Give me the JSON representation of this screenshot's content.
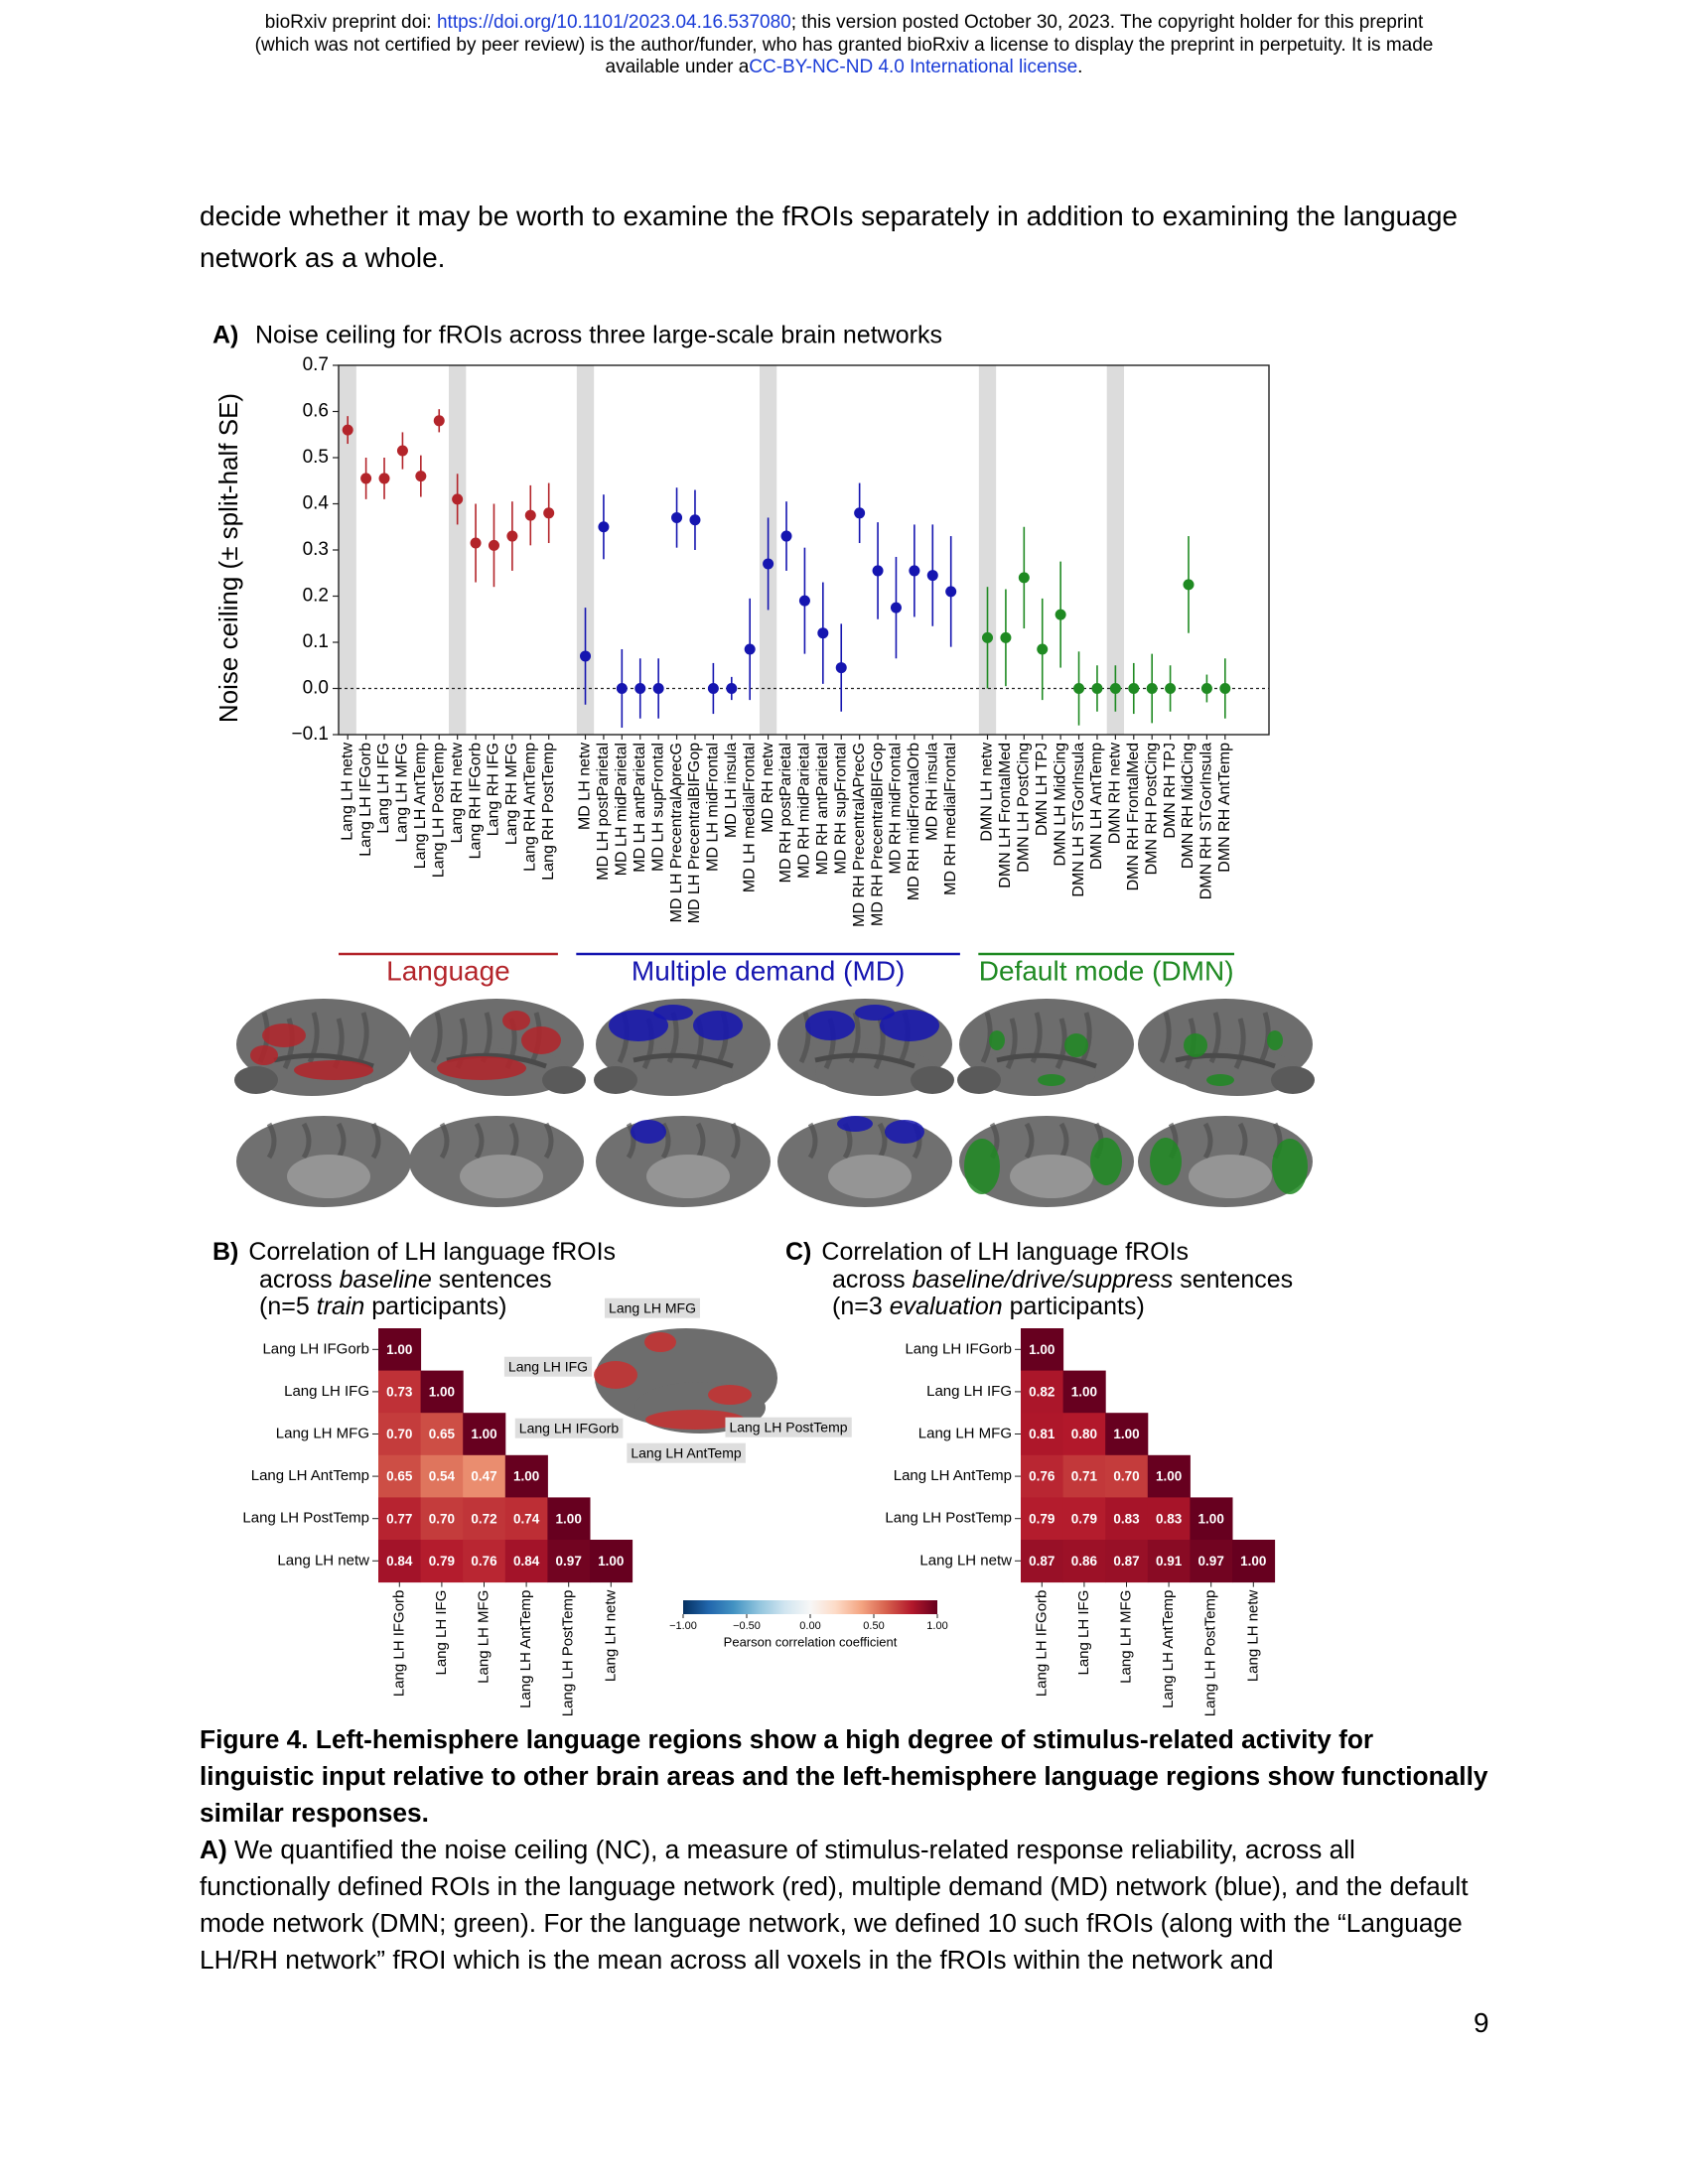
{
  "header": {
    "line1_pre": "bioRxiv preprint doi: ",
    "doi": "https://doi.org/10.1101/2023.04.16.537080",
    "line1_post": "; this version posted October 30, 2023. The copyright holder for this preprint",
    "line2": "(which was not certified by peer review) is the author/funder, who has granted bioRxiv a license to display the preprint in perpetuity. It is made",
    "line3_pre": "available under a",
    "license": "CC-BY-NC-ND 4.0 International license",
    "line3_post": "."
  },
  "body_text": "decide whether it may be worth to examine the fROIs separately in addition to examining the language network as a whole.",
  "chart_data": [
    {
      "type": "errorbar",
      "label": "A)",
      "title": "Noise ceiling for fROIs across three large-scale brain networks",
      "y_label": "Noise ceiling (± split-half SE)",
      "ylim": [
        -0.1,
        0.7
      ],
      "yticks": [
        {
          "value": -0.1,
          "label": "−0.1"
        },
        {
          "value": 0,
          "label": "0.0"
        },
        0.1,
        0.2,
        0.3,
        0.4,
        0.5,
        0.6,
        0.7
      ],
      "reference_line": 0,
      "highlight": [
        0,
        6,
        13,
        23,
        35,
        42
      ],
      "categories": [
        "Lang LH netw",
        "Lang LH IFGorb",
        "Lang LH IFG",
        "Lang LH MFG",
        "Lang LH AntTemp",
        "Lang LH PostTemp",
        "Lang RH netw",
        "Lang RH IFGorb",
        "Lang RH IFG",
        "Lang RH MFG",
        "Lang RH AntTemp",
        "Lang RH PostTemp",
        null,
        "MD LH netw",
        "MD LH postParietal",
        "MD LH midParietal",
        "MD LH antParietal",
        "MD LH supFrontal",
        "MD LH PrecentralAprecG",
        "MD LH PrecentralBIFGop",
        "MD LH midFrontal",
        "MD LH insula",
        "MD LH medialFrontal",
        "MD RH netw",
        "MD RH postParietal",
        "MD RH midParietal",
        "MD RH antParietal",
        "MD RH supFrontal",
        "MD RH PrecentralAPrecG",
        "MD RH PrecentralBIFGop",
        "MD RH midFrontal",
        "MD RH midFrontalOrb",
        "MD RH insula",
        "MD RH medialFrontal",
        null,
        "DMN LH netw",
        "DMN LH FrontalMed",
        "DMN LH PostCing",
        "DMN LH TPJ",
        "DMN LH MidCing",
        "DMN LH STGorInsula",
        "DMN LH AntTemp",
        "DMN RH netw",
        "DMN RH FrontalMed",
        "DMN RH PostCing",
        "DMN RH TPJ",
        "DMN RH MidCing",
        "DMN RH STGorInsula",
        "DMN RH AntTemp"
      ],
      "series": [
        {
          "name": "Language",
          "color": "#b3242a",
          "values": [
            0.56,
            0.455,
            0.455,
            0.515,
            0.46,
            0.58,
            0.41,
            0.315,
            0.31,
            0.33,
            0.375,
            0.38,
            null,
            null,
            null,
            null,
            null,
            null,
            null,
            null,
            null,
            null,
            null,
            null,
            null,
            null,
            null,
            null,
            null,
            null,
            null,
            null,
            null,
            null,
            null,
            null,
            null,
            null,
            null,
            null,
            null,
            null,
            null,
            null,
            null,
            null,
            null,
            null,
            null
          ],
          "errors": [
            0.03,
            0.045,
            0.045,
            0.04,
            0.045,
            0.025,
            0.055,
            0.085,
            0.09,
            0.075,
            0.065,
            0.065,
            null,
            null,
            null,
            null,
            null,
            null,
            null,
            null,
            null,
            null,
            null,
            null,
            null,
            null,
            null,
            null,
            null,
            null,
            null,
            null,
            null,
            null,
            null,
            null,
            null,
            null,
            null,
            null,
            null,
            null,
            null,
            null,
            null,
            null,
            null,
            null,
            null
          ]
        },
        {
          "name": "Multiple demand (MD)",
          "color": "#1515b0",
          "values": [
            null,
            null,
            null,
            null,
            null,
            null,
            null,
            null,
            null,
            null,
            null,
            null,
            null,
            0.07,
            0.35,
            0,
            0,
            0,
            0.37,
            0.365,
            0,
            0,
            0.085,
            0.27,
            0.33,
            0.19,
            0.12,
            0.045,
            0.38,
            0.255,
            0.175,
            0.255,
            0.245,
            0.21,
            null,
            null,
            null,
            null,
            null,
            null,
            null,
            null,
            null,
            null,
            null,
            null,
            null,
            null,
            null
          ],
          "errors": [
            null,
            null,
            null,
            null,
            null,
            null,
            null,
            null,
            null,
            null,
            null,
            null,
            null,
            0.105,
            0.07,
            0.085,
            0.065,
            0.065,
            0.065,
            0.065,
            0.055,
            0.025,
            0.11,
            0.1,
            0.075,
            0.115,
            0.11,
            0.095,
            0.065,
            0.105,
            0.11,
            0.1,
            0.11,
            0.12,
            null,
            null,
            null,
            null,
            null,
            null,
            null,
            null,
            null,
            null,
            null,
            null,
            null,
            null,
            null
          ]
        },
        {
          "name": "Default mode (DMN)",
          "color": "#1f8a22",
          "values": [
            null,
            null,
            null,
            null,
            null,
            null,
            null,
            null,
            null,
            null,
            null,
            null,
            null,
            null,
            null,
            null,
            null,
            null,
            null,
            null,
            null,
            null,
            null,
            null,
            null,
            null,
            null,
            null,
            null,
            null,
            null,
            null,
            null,
            null,
            null,
            0.11,
            0.11,
            0.24,
            0.085,
            0.16,
            0,
            0,
            0,
            0,
            0,
            0,
            0.225,
            0,
            0
          ],
          "errors": [
            null,
            null,
            null,
            null,
            null,
            null,
            null,
            null,
            null,
            null,
            null,
            null,
            null,
            null,
            null,
            null,
            null,
            null,
            null,
            null,
            null,
            null,
            null,
            null,
            null,
            null,
            null,
            null,
            null,
            null,
            null,
            null,
            null,
            null,
            null,
            0.11,
            0.105,
            0.11,
            0.11,
            0.115,
            0.08,
            0.05,
            0.05,
            0.055,
            0.075,
            0.05,
            0.105,
            0.03,
            0.065
          ]
        }
      ]
    },
    {
      "type": "heatmap",
      "label": "B)",
      "title_lines": [
        [
          "Correlation of LH language fROIs"
        ],
        [
          "across ",
          "baseline",
          " sentences"
        ],
        [
          "(n=5 ",
          "train",
          " participants)"
        ]
      ],
      "categories": [
        "Lang LH IFGorb",
        "Lang LH IFG",
        "Lang LH MFG",
        "Lang LH AntTemp",
        "Lang LH PostTemp",
        "Lang LH netw"
      ],
      "values": [
        [
          1
        ],
        [
          0.73,
          1
        ],
        [
          0.7,
          0.65,
          1
        ],
        [
          0.65,
          0.54,
          0.47,
          1
        ],
        [
          0.77,
          0.7,
          0.72,
          0.74,
          1
        ],
        [
          0.84,
          0.79,
          0.76,
          0.84,
          0.97,
          1
        ]
      ],
      "value_labels": [
        [
          "1.00"
        ],
        [
          "0.73",
          "1.00"
        ],
        [
          "0.70",
          "0.65",
          "1.00"
        ],
        [
          "0.65",
          "0.54",
          "0.47",
          "1.00"
        ],
        [
          "0.77",
          "0.70",
          "0.72",
          "0.74",
          "1.00"
        ],
        [
          "0.84",
          "0.79",
          "0.76",
          "0.84",
          "0.97",
          "1.00"
        ]
      ]
    },
    {
      "type": "heatmap",
      "label": "C)",
      "title_lines": [
        [
          "Correlation of LH language fROIs"
        ],
        [
          "across ",
          "baseline/drive/suppress",
          " sentences"
        ],
        [
          "(n=3 ",
          "evaluation",
          " participants)"
        ]
      ],
      "categories": [
        "Lang LH IFGorb",
        "Lang LH IFG",
        "Lang LH MFG",
        "Lang LH AntTemp",
        "Lang LH PostTemp",
        "Lang LH netw"
      ],
      "values": [
        [
          1
        ],
        [
          0.82,
          1
        ],
        [
          0.81,
          0.8,
          1
        ],
        [
          0.76,
          0.71,
          0.7,
          1
        ],
        [
          0.79,
          0.79,
          0.83,
          0.83,
          1
        ],
        [
          0.87,
          0.86,
          0.87,
          0.91,
          0.97,
          1
        ]
      ],
      "value_labels": [
        [
          "1.00"
        ],
        [
          "0.82",
          "1.00"
        ],
        [
          "0.81",
          "0.80",
          "1.00"
        ],
        [
          "0.76",
          "0.71",
          "0.70",
          "1.00"
        ],
        [
          "0.79",
          "0.79",
          "0.83",
          "0.83",
          "1.00"
        ],
        [
          "0.87",
          "0.86",
          "0.87",
          "0.91",
          "0.97",
          "1.00"
        ]
      ]
    }
  ],
  "colorbar": {
    "label": "Pearson correlation coefficient",
    "zlim": [
      -1,
      1
    ],
    "ticks": [
      {
        "value": -1,
        "label": "−1.00"
      },
      {
        "value": -0.5,
        "label": "−0.50"
      },
      {
        "value": 0,
        "label": "0.00"
      },
      {
        "value": 0.5,
        "label": "0.50"
      },
      {
        "value": 1,
        "label": "1.00"
      }
    ],
    "colors": [
      "#053061",
      "#2166ac",
      "#4393c3",
      "#92c5de",
      "#d1e5f0",
      "#f7f7f7",
      "#fddbc7",
      "#f4a582",
      "#d6604d",
      "#b2182b",
      "#67001f"
    ]
  },
  "inset_labels": [
    "Lang LH MFG",
    "Lang LH IFG",
    "Lang LH IFGorb",
    "Lang LH AntTemp",
    "Lang LH PostTemp"
  ],
  "caption": {
    "title": "Figure 4. Left-hemisphere language regions show a high degree of stimulus-related activity for linguistic input relative to other brain areas and the left-hemisphere language regions show functionally similar responses.",
    "paragraph_label": "A)",
    "paragraph": " We quantified the noise ceiling (NC), a measure of stimulus-related response reliability, across all functionally defined ROIs in the language network (red), multiple demand (MD) network (blue), and the default mode network (DMN; green). For the language network, we defined 10 such fROIs (along with the “Language LH/RH network” fROI which is the mean across all voxels in the fROIs within the network and"
  },
  "page_number": "9"
}
